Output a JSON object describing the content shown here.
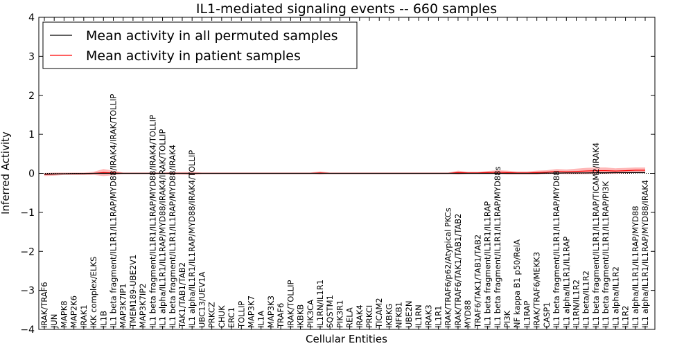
{
  "chart_data": {
    "type": "line",
    "title": "IL1-mediated signaling events -- 660 samples",
    "xlabel": "Cellular Entities",
    "ylabel": "Inferred Activity",
    "ylim": [
      -4,
      4
    ],
    "yticks": [
      -4,
      -3,
      -2,
      -1,
      0,
      1,
      2,
      3,
      4
    ],
    "ytick_labels": [
      "−4",
      "−3",
      "−2",
      "−1",
      "0",
      "1",
      "2",
      "3",
      "4"
    ],
    "legend": {
      "position": "top-left",
      "entries": [
        {
          "label": "Mean activity in all permuted samples",
          "color": "#000000"
        },
        {
          "label": "Mean activity in patient samples",
          "color": "#ff0000"
        }
      ]
    },
    "categories": [
      "IRAK/TRAF6",
      "JUN",
      "MAPK8",
      "MAP2K6",
      "IRAK1",
      "IKK complex/ELKS",
      "IL1B",
      "IL1 beta fragment/IL1R1/IL1RAP/MYD88/IRAK4/IRAK/TOLLIP",
      "MAP3K7IP1",
      "TMEM189-UBE2V1",
      "MAP3K7IP2",
      "IL1 beta fragment/IL1R1/IL1RAP/MYD88/IRAK4/TOLLIP",
      "IL1 alpha/IL1R1/IL1RAP/MYD88/IRAK4/IRAK/TOLLIP",
      "IL1 beta fragment/IL1R1/IL1RAP/MYD88/IRAK4",
      "TAK1/TAB1/TAB2",
      "IL1 alpha/IL1R1/IL1RAP/MYD88/IRAK4/TOLLIP",
      "UBC13/UEV1A",
      "PRKCZ",
      "CHUK",
      "ERC1",
      "TOLLIP",
      "MAP3K7",
      "IL1A",
      "MAP3K3",
      "TRAF6",
      "IRAK/TOLLIP",
      "IKBKB",
      "PIK3CA",
      "IL1RN/IL1R1",
      "SQSTM1",
      "PIK3R1",
      "RELA",
      "IRAK4",
      "PRKCI",
      "TICAM2",
      "IKBKG",
      "NFKB1",
      "UBE2N",
      "IL1RN",
      "IRAK3",
      "IL1R1",
      "IRAK/TRAF6/p62/Atypical PKCs",
      "IRAK/TRAF6/TAK1/TAB1/TAB2",
      "MYD88",
      "TRAF6/TAK1/TAB1/TAB2",
      "IL1 beta fragment/IL1R1/IL1RAP",
      "IL1 beta fragment/IL1R1/IL1RAP/MYD88s",
      "PI3K",
      "NF kappa B1 p50/RelA",
      "IL1RAP",
      "IRAK/TRAF6/MEKK3",
      "CASP1",
      "IL1 beta fragment/IL1R1/IL1RAP/MYD88",
      "IL1 alpha/IL1R1/IL1RAP",
      "IL1RN/IL1R2",
      "IL1 beta/IL1R2",
      "IL1 beta fragment/IL1R1/IL1RAP/TICAM2/IRAK4",
      "IL1 beta fragment/IL1R1/IL1RAP/PI3K",
      "IL1 alpha/IL1R2",
      "IL1R2",
      "IL1 alpha/IL1R1/IL1RAP/MYD88",
      "IL1 alpha/IL1R1/IL1RAP/MYD88/IRAK4"
    ],
    "series": [
      {
        "name": "Mean activity in all permuted samples",
        "color": "#000000",
        "values": [
          -0.02,
          -0.015,
          -0.01,
          -0.005,
          -0.005,
          0.0,
          0.0,
          0.0,
          0.0,
          0.0,
          0.0,
          0.0,
          0.0,
          0.0,
          0.0,
          0.0,
          0.0,
          0.0,
          0.0,
          0.0,
          0.0,
          0.0,
          0.0,
          0.0,
          0.0,
          0.0,
          0.0,
          0.0,
          0.0,
          0.0,
          0.0,
          0.0,
          0.0,
          0.0,
          0.0,
          0.0,
          0.0,
          0.0,
          0.0,
          0.0,
          0.0,
          0.0,
          0.0,
          0.0,
          0.0,
          0.0,
          0.0,
          0.0,
          0.0,
          0.0,
          0.0,
          0.005,
          0.005,
          0.01,
          0.01,
          0.01,
          0.015,
          0.015,
          0.02,
          0.02,
          0.02,
          0.02
        ]
      },
      {
        "name": "Mean activity in patient samples",
        "color": "#ff0000",
        "values": [
          -0.03,
          -0.02,
          -0.01,
          -0.01,
          -0.01,
          0.0,
          0.02,
          0.01,
          0.0,
          0.0,
          0.0,
          0.0,
          0.0,
          0.0,
          0.0,
          0.0,
          0.0,
          0.0,
          0.0,
          0.0,
          0.0,
          0.0,
          0.0,
          0.0,
          0.0,
          0.0,
          0.0,
          0.0,
          0.01,
          0.0,
          0.0,
          0.0,
          0.0,
          0.0,
          0.0,
          0.0,
          0.0,
          0.0,
          0.0,
          0.0,
          0.0,
          0.0,
          0.02,
          0.01,
          0.01,
          0.02,
          0.03,
          0.02,
          0.01,
          0.01,
          0.02,
          0.03,
          0.05,
          0.04,
          0.05,
          0.06,
          0.07,
          0.07,
          0.06,
          0.07,
          0.08,
          0.08
        ]
      }
    ],
    "band_halfwidth": [
      0.04,
      0.04,
      0.03,
      0.03,
      0.03,
      0.04,
      0.09,
      0.06,
      0.02,
      0.02,
      0.02,
      0.02,
      0.02,
      0.03,
      0.03,
      0.04,
      0.02,
      0.02,
      0.02,
      0.02,
      0.02,
      0.02,
      0.02,
      0.02,
      0.02,
      0.02,
      0.02,
      0.02,
      0.04,
      0.02,
      0.02,
      0.02,
      0.02,
      0.02,
      0.02,
      0.02,
      0.02,
      0.02,
      0.02,
      0.02,
      0.02,
      0.02,
      0.05,
      0.03,
      0.03,
      0.04,
      0.05,
      0.05,
      0.04,
      0.04,
      0.05,
      0.05,
      0.06,
      0.06,
      0.07,
      0.08,
      0.08,
      0.08,
      0.07,
      0.07,
      0.07,
      0.07
    ]
  }
}
